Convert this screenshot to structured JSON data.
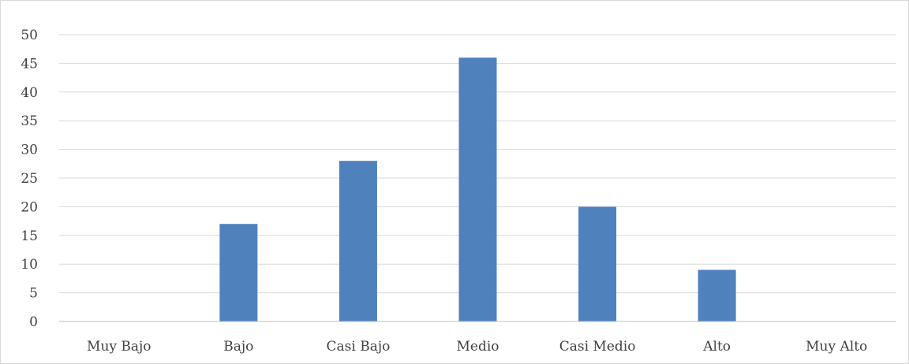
{
  "chart_data": {
    "type": "bar",
    "title": "",
    "xlabel": "",
    "ylabel": "",
    "categories": [
      "Muy Bajo",
      "Bajo",
      "Casi Bajo",
      "Medio",
      "Casi Medio",
      "Alto",
      "Muy Alto"
    ],
    "values": [
      0,
      17,
      28,
      46,
      20,
      9,
      0
    ],
    "ylim": [
      0,
      50
    ],
    "yticks": [
      0,
      5,
      10,
      15,
      20,
      25,
      30,
      35,
      40,
      45,
      50
    ],
    "grid": true,
    "legend": "none",
    "bar_color": "#4f81bd"
  }
}
